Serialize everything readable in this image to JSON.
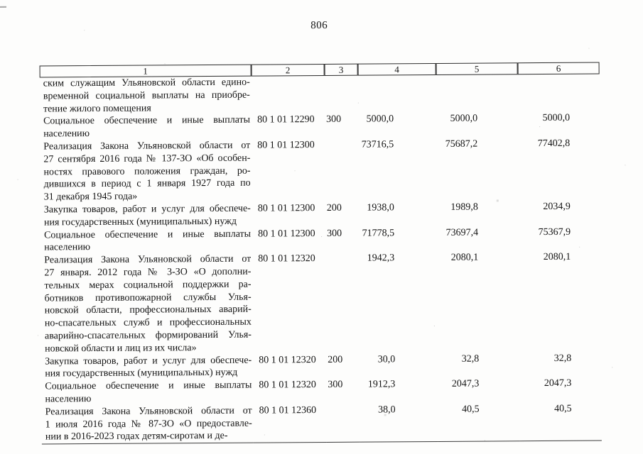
{
  "page": {
    "number": "806"
  },
  "table": {
    "column_headers": [
      "1",
      "2",
      "3",
      "4",
      "5",
      "6"
    ],
    "rows": [
      {
        "name": [
          "ским служащим Ульяновской области едино-",
          "временной социальной выплаты на приобре-",
          "тение жилого помещения"
        ],
        "code": "",
        "vr": "",
        "sum1": "",
        "sum2": "",
        "sum3": ""
      },
      {
        "name": [
          "Социальное обеспечение и иные выплаты",
          "населению"
        ],
        "code": "80 1 01 12290",
        "vr": "300",
        "sum1": "5000,0",
        "sum2": "5000,0",
        "sum3": "5000,0"
      },
      {
        "name": [
          "Реализация Закона Ульяновской области от",
          "27 сентября 2016 года № 137-ЗО «Об особен-",
          "ностях правового положения граждан, ро-",
          "дившихся в период с 1 января 1927 года по",
          "31 декабря 1945 года»"
        ],
        "code": "80 1 01 12300",
        "vr": "",
        "sum1": "73716,5",
        "sum2": "75687,2",
        "sum3": "77402,8"
      },
      {
        "name": [
          "Закупка товаров, работ и услуг для обеспече-",
          "ния государственных (муниципальных) нужд"
        ],
        "code": "80 1 01 12300",
        "vr": "200",
        "sum1": "1938,0",
        "sum2": "1989,8",
        "sum3": "2034,9"
      },
      {
        "name": [
          "Социальное обеспечение и иные выплаты",
          "населению"
        ],
        "code": "80 1 01 12300",
        "vr": "300",
        "sum1": "71778,5",
        "sum2": "73697,4",
        "sum3": "75367,9"
      },
      {
        "name": [
          "Реализация Закона Ульяновской области от",
          "27 января. 2012 года № 3-ЗО «О дополни-",
          "тельных мерах социальной поддержки ра-",
          "ботников противопожарной службы Улья-",
          "новской области, профессиональных аварий-",
          "но-спасательных служб и профессиональных",
          "аварийно-спасательных формирований Улья-",
          "новской области и лиц из их числа»"
        ],
        "code": "80 1 01 12320",
        "vr": "",
        "sum1": "1942,3",
        "sum2": "2080,1",
        "sum3": "2080,1"
      },
      {
        "name": [
          "Закупка товаров, работ и услуг для обеспече-",
          "ния государственных (муниципальных) нужд"
        ],
        "code": "80 1 01 12320",
        "vr": "200",
        "sum1": "30,0",
        "sum2": "32,8",
        "sum3": "32,8"
      },
      {
        "name": [
          "Социальное обеспечение и иные выплаты",
          "населению"
        ],
        "code": "80 1 01 12320",
        "vr": "300",
        "sum1": "1912,3",
        "sum2": "2047,3",
        "sum3": "2047,3"
      },
      {
        "name": [
          "Реализация Закона Ульяновской области от",
          "1 июля 2016 года № 87-ЗО «О предоставле-",
          "нии в 2016-2023 годах детям-сиротам и де-"
        ],
        "code": "80 1 01 12360",
        "vr": "",
        "sum1": "38,0",
        "sum2": "40,5",
        "sum3": "40,5"
      }
    ]
  }
}
